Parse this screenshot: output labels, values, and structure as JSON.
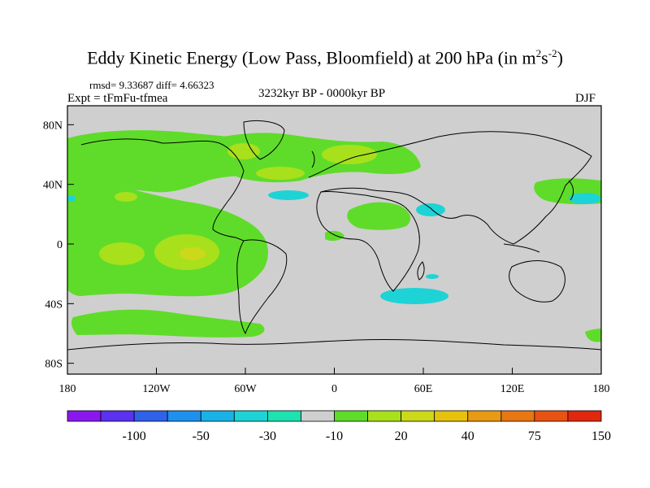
{
  "title_main": "Eddy Kinetic Energy (Low Pass, Bloomfield) at 200 hPa (in m",
  "title_exp1": "2",
  "title_mid": "s",
  "title_exp2": "-2",
  "title_end": ")",
  "stats": "rmsd= 9.33687  diff= 4.66323",
  "expt": "Expt = tFmFu-tfmea",
  "period": "3232kyr BP - 0000kyr BP",
  "season": "DJF",
  "lat_labels": [
    "80N",
    "40N",
    "0",
    "40S",
    "80S"
  ],
  "lat_values": [
    80,
    40,
    0,
    -40,
    -80
  ],
  "lon_labels": [
    "180",
    "120W",
    "60W",
    "0",
    "60E",
    "120E",
    "180"
  ],
  "lon_values": [
    -180,
    -120,
    -60,
    0,
    60,
    120,
    180
  ],
  "colorbar": {
    "colors": [
      "#8a18ee",
      "#5a32f0",
      "#2f62e8",
      "#1e90ee",
      "#19b2e6",
      "#1ed3d6",
      "#1ee2b0",
      "#cfcfcf",
      "#5fdc2a",
      "#a8e01c",
      "#ccd81a",
      "#e6c20e",
      "#e99a14",
      "#e87612",
      "#e85212",
      "#e0280e"
    ],
    "labels": [
      "-100",
      "-50",
      "-30",
      "-10",
      "20",
      "40",
      "75",
      "150"
    ]
  },
  "colors": {
    "land_green": "#5fdc2a",
    "yellow_green": "#a8e01c",
    "cyan": "#1ed3d6",
    "background": "#cfcfcf"
  }
}
